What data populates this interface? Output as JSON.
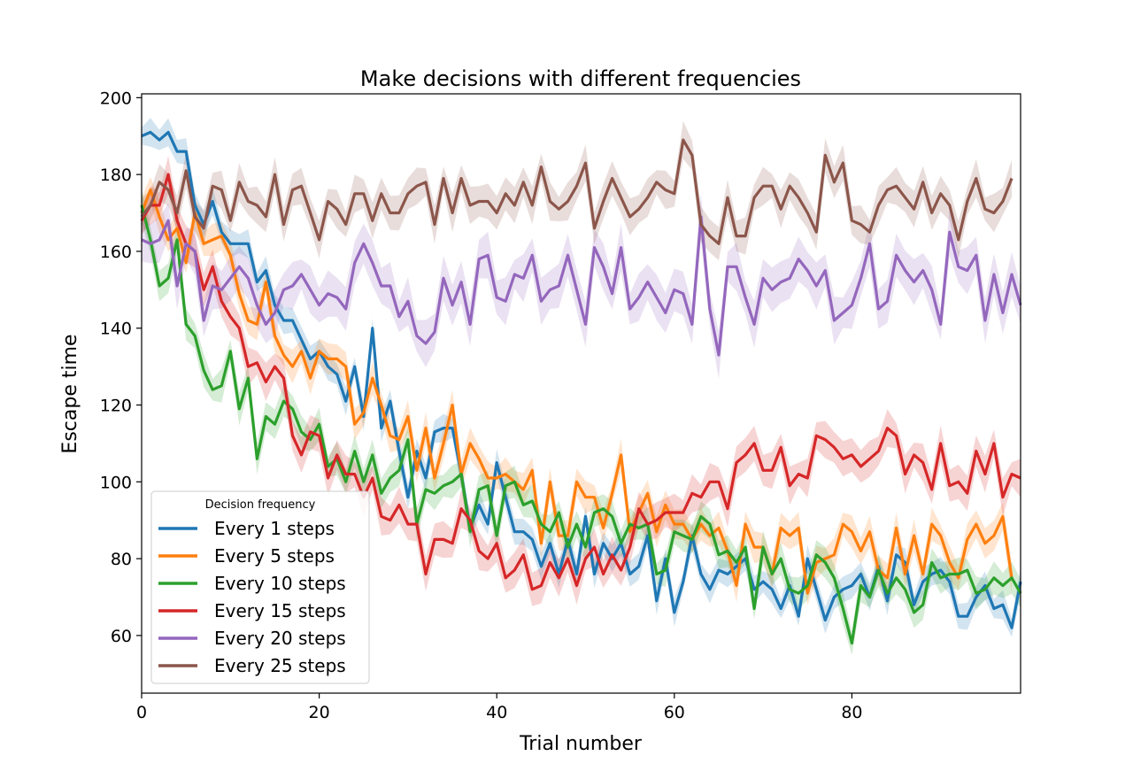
{
  "chart_data": {
    "type": "line",
    "title": "Make decisions with different frequencies",
    "xlabel": "Trial number",
    "ylabel": "Escape time",
    "xlim": [
      0,
      99
    ],
    "ylim": [
      45,
      201
    ],
    "xticks": [
      0,
      20,
      40,
      60,
      80
    ],
    "yticks": [
      60,
      80,
      100,
      120,
      140,
      160,
      180,
      200
    ],
    "grid": false,
    "legend": {
      "title": "Decision frequency",
      "position": "lower-left"
    },
    "series": [
      {
        "name": "Every 1 steps",
        "color": "#1f77b4",
        "band": 3,
        "values": [
          190,
          191,
          189,
          191,
          186,
          186,
          172,
          167,
          173,
          165,
          162,
          162,
          162,
          152,
          155,
          146,
          142,
          142,
          137,
          132,
          134,
          130,
          128,
          121,
          130,
          117,
          140,
          114,
          121,
          108,
          96,
          108,
          101,
          113,
          114,
          114,
          102,
          88,
          94,
          89,
          105,
          96,
          87,
          87,
          85,
          78,
          84,
          76,
          85,
          76,
          91,
          76,
          84,
          80,
          84,
          76,
          78,
          86,
          69,
          80,
          66,
          74,
          86,
          76,
          72,
          77,
          76,
          78,
          80,
          72,
          74,
          72,
          67,
          73,
          65,
          80,
          72,
          64,
          70,
          72,
          73,
          76,
          70,
          78,
          69,
          81,
          79,
          68,
          74,
          76,
          77,
          74,
          65,
          65,
          70,
          73,
          67,
          68,
          62,
          74
        ]
      },
      {
        "name": "Every 5 steps",
        "color": "#ff7f0e",
        "band": 3.5,
        "values": [
          170,
          176,
          169,
          163,
          166,
          157,
          170,
          162,
          163,
          164,
          159,
          149,
          142,
          141,
          152,
          138,
          133,
          130,
          134,
          127,
          134,
          132,
          132,
          130,
          115,
          118,
          127,
          120,
          112,
          111,
          117,
          103,
          114,
          101,
          110,
          120,
          102,
          110,
          106,
          101,
          101,
          102,
          100,
          98,
          103,
          84,
          100,
          86,
          86,
          100,
          96,
          96,
          88,
          97,
          107,
          87,
          92,
          97,
          87,
          94,
          89,
          89,
          85,
          89,
          86,
          88,
          82,
          73,
          89,
          83,
          83,
          76,
          88,
          86,
          88,
          71,
          79,
          80,
          81,
          89,
          87,
          82,
          87,
          77,
          75,
          88,
          76,
          86,
          76,
          89,
          86,
          79,
          75,
          85,
          89,
          84,
          86,
          91,
          75
        ]
      },
      {
        "name": "Every 10 steps",
        "color": "#2ca02c",
        "band": 3.5,
        "values": [
          172,
          163,
          151,
          153,
          163,
          141,
          138,
          129,
          124,
          125,
          134,
          119,
          127,
          106,
          117,
          115,
          121,
          119,
          113,
          111,
          115,
          104,
          106,
          100,
          108,
          100,
          107,
          97,
          101,
          103,
          111,
          89,
          98,
          97,
          99,
          100,
          102,
          87,
          98,
          99,
          86,
          99,
          100,
          94,
          95,
          89,
          87,
          92,
          83,
          89,
          83,
          92,
          93,
          91,
          84,
          89,
          88,
          89,
          76,
          77,
          87,
          86,
          85,
          91,
          89,
          81,
          82,
          79,
          83,
          67,
          83,
          76,
          80,
          72,
          71,
          73,
          81,
          79,
          75,
          67,
          58,
          73,
          70,
          77,
          71,
          75,
          72,
          66,
          68,
          79,
          75,
          76,
          76,
          77,
          71,
          72,
          75,
          73,
          75,
          71
        ]
      },
      {
        "name": "Every 15 steps",
        "color": "#d62728",
        "band": 4,
        "values": [
          168,
          172,
          172,
          180,
          168,
          162,
          160,
          150,
          156,
          147,
          143,
          140,
          130,
          131,
          126,
          130,
          127,
          112,
          107,
          113,
          112,
          101,
          107,
          102,
          102,
          96,
          101,
          91,
          90,
          94,
          89,
          89,
          76,
          85,
          85,
          84,
          93,
          90,
          82,
          80,
          84,
          75,
          77,
          81,
          72,
          73,
          79,
          75,
          80,
          73,
          80,
          83,
          76,
          81,
          77,
          83,
          93,
          89,
          90,
          92,
          92,
          92,
          97,
          96,
          100,
          100,
          93,
          105,
          107,
          110,
          103,
          103,
          109,
          99,
          102,
          101,
          112,
          111,
          109,
          106,
          107,
          104,
          106,
          108,
          114,
          112,
          102,
          107,
          105,
          98,
          110,
          99,
          100,
          97,
          108,
          102,
          110,
          96,
          102,
          101
        ]
      },
      {
        "name": "Every 20 steps",
        "color": "#9467bd",
        "band": 5,
        "values": [
          163,
          162,
          163,
          168,
          151,
          162,
          160,
          142,
          151,
          150,
          153,
          156,
          153,
          146,
          141,
          144,
          150,
          151,
          154,
          150,
          146,
          149,
          148,
          145,
          157,
          162,
          157,
          151,
          151,
          143,
          147,
          138,
          136,
          139,
          153,
          146,
          152,
          141,
          158,
          159,
          148,
          147,
          154,
          153,
          159,
          147,
          150,
          151,
          159,
          150,
          141,
          161,
          156,
          149,
          161,
          145,
          148,
          152,
          148,
          144,
          150,
          149,
          141,
          169,
          145,
          133,
          156,
          156,
          148,
          141,
          153,
          150,
          152,
          153,
          158,
          155,
          151,
          155,
          142,
          144,
          146,
          153,
          162,
          145,
          147,
          159,
          155,
          152,
          155,
          150,
          141,
          165,
          156,
          155,
          159,
          142,
          154,
          144,
          154,
          146
        ]
      },
      {
        "name": "Every 25 steps",
        "color": "#8c564b",
        "band": 4,
        "values": [
          169,
          172,
          178,
          176,
          170,
          181,
          169,
          166,
          177,
          176,
          168,
          178,
          173,
          172,
          169,
          180,
          167,
          176,
          177,
          170,
          163,
          173,
          171,
          167,
          175,
          175,
          168,
          175,
          170,
          170,
          175,
          177,
          178,
          167,
          179,
          170,
          179,
          172,
          173,
          173,
          170,
          175,
          172,
          178,
          172,
          182,
          173,
          171,
          173,
          177,
          183,
          166,
          173,
          179,
          174,
          169,
          171,
          174,
          178,
          176,
          175,
          189,
          185,
          167,
          164,
          162,
          174,
          164,
          164,
          174,
          177,
          177,
          171,
          177,
          174,
          170,
          165,
          185,
          178,
          183,
          168,
          167,
          165,
          172,
          176,
          177,
          174,
          171,
          178,
          170,
          175,
          172,
          163,
          173,
          179,
          171,
          170,
          173,
          179
        ]
      }
    ]
  }
}
